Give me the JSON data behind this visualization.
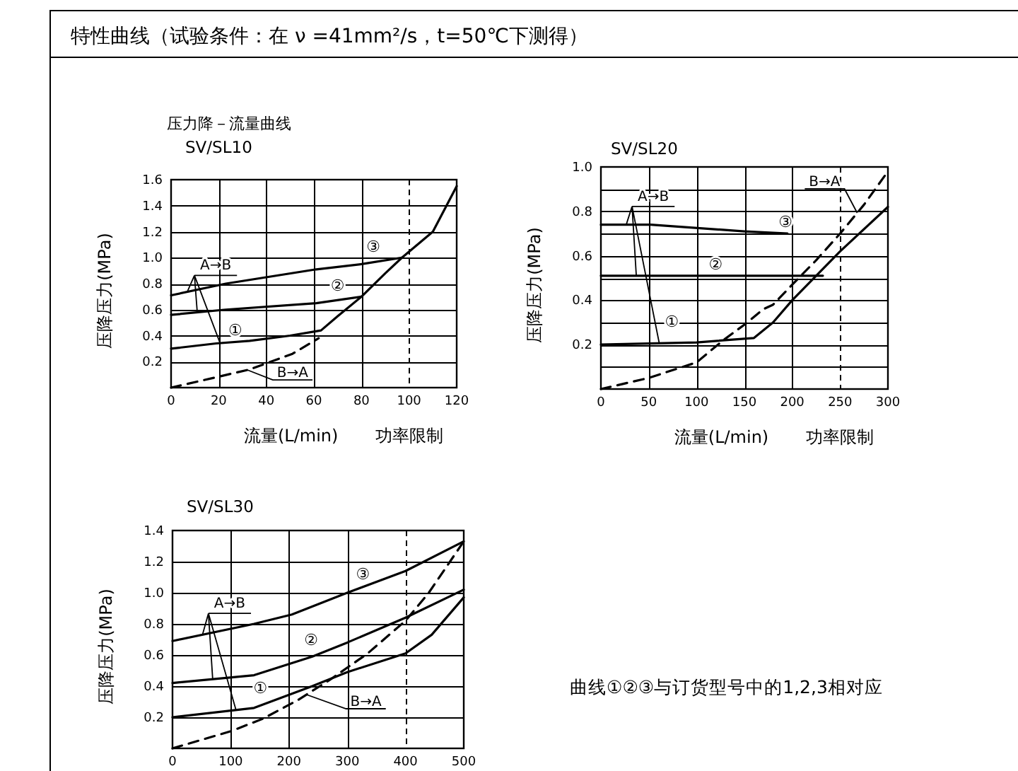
{
  "chart_data": [
    {
      "type": "other",
      "title": "特性曲线（试验条件：在 ν =41mm²/s，t=50℃下测得）"
    },
    {
      "type": "line",
      "title": "压力降－流量曲线",
      "subtitle": "SV/SL10",
      "xlabel": "流量(L/min)",
      "ylabel": "压降压力(MPa)",
      "xlim": [
        0,
        120
      ],
      "ylim": [
        0,
        1.6
      ],
      "xticks": [
        0,
        20,
        40,
        60,
        80,
        100,
        120
      ],
      "yticks": [
        {
          "value": 0,
          "label": null
        },
        0.2,
        0.4,
        0.6,
        0.8,
        {
          "value": 1,
          "label": "1.0"
        },
        1.2,
        1.4,
        1.6
      ],
      "grid": true,
      "ref_lines": [
        {
          "axis": "x",
          "value": 100,
          "label": "功率限制",
          "line_style": "dashed",
          "color": "#000000"
        }
      ],
      "series": [
        {
          "name": "①",
          "color": "#000000",
          "x": [
            0,
            19,
            33,
            50,
            63,
            70,
            80,
            90,
            97,
            110,
            120
          ],
          "values": [
            0.3,
            0.34,
            0.36,
            0.4,
            0.44,
            0.55,
            0.7,
            0.88,
            1.0,
            1.2,
            1.55
          ]
        },
        {
          "name": "②",
          "color": "#000000",
          "x": [
            0,
            23,
            61,
            80
          ],
          "values": [
            0.56,
            0.6,
            0.65,
            0.7
          ]
        },
        {
          "name": "③",
          "color": "#000000",
          "x": [
            0,
            23,
            61,
            80,
            97
          ],
          "values": [
            0.71,
            0.8,
            0.91,
            0.95,
            1.0
          ]
        },
        {
          "name": "B→A",
          "color": "#000000",
          "line_style": "dashed",
          "x": [
            0,
            19,
            33,
            51,
            62
          ],
          "values": [
            0,
            0.08,
            0.14,
            0.26,
            0.38
          ]
        }
      ],
      "annotations": [
        {
          "text": "A→B",
          "x": 11,
          "y": 0.58
        }
      ]
    },
    {
      "type": "line",
      "title": "SV/SL20",
      "xlabel": "流量(L/min)",
      "ylabel": "压降压力(MPa)",
      "xlim": [
        0,
        300
      ],
      "ylim": [
        0,
        1
      ],
      "xticks": [
        0,
        50,
        100,
        150,
        200,
        250,
        300
      ],
      "yticks": [
        {
          "value": 0,
          "label": null
        },
        {
          "value": 0.1,
          "label": null
        },
        0.2,
        {
          "value": 0.3,
          "label": null
        },
        0.4,
        {
          "value": 0.5,
          "label": null
        },
        0.6,
        {
          "value": 0.7,
          "label": null
        },
        0.8,
        {
          "value": 0.9,
          "label": null
        },
        {
          "value": 1,
          "label": "1.0"
        }
      ],
      "grid": true,
      "ref_lines": [
        {
          "axis": "x",
          "value": 250,
          "label": "功率限制",
          "line_style": "dashed",
          "color": "#000000"
        }
      ],
      "series": [
        {
          "name": "①",
          "color": "#000000",
          "x": [
            0,
            100,
            160,
            180,
            200,
            225,
            250,
            300
          ],
          "values": [
            0.2,
            0.21,
            0.23,
            0.3,
            0.4,
            0.51,
            0.62,
            0.82
          ]
        },
        {
          "name": "②",
          "color": "#000000",
          "x": [
            0,
            232
          ],
          "values": [
            0.51,
            0.51
          ]
        },
        {
          "name": "③",
          "color": "#000000",
          "x": [
            0,
            52,
            150,
            195
          ],
          "values": [
            0.74,
            0.74,
            0.71,
            0.7
          ]
        },
        {
          "name": "B→A",
          "color": "#000000",
          "line_style": "dashed",
          "x": [
            0,
            50,
            100,
            128,
            150,
            170,
            180,
            200,
            225,
            250,
            275,
            300
          ],
          "values": [
            0,
            0.05,
            0.12,
            0.22,
            0.29,
            0.36,
            0.38,
            0.47,
            0.58,
            0.7,
            0.83,
            0.98
          ]
        }
      ],
      "annotations": [
        {
          "text": "A→B",
          "x": 37,
          "y": 0.51
        }
      ]
    },
    {
      "type": "line",
      "title": "SV/SL30",
      "ylabel": "压降压力(MPa)",
      "xlim": [
        0,
        500
      ],
      "ylim": [
        0,
        1.4
      ],
      "xticks": [
        0,
        100,
        200,
        300,
        400,
        500
      ],
      "yticks": [
        {
          "value": 0,
          "label": null
        },
        0.2,
        0.4,
        0.6,
        0.8,
        {
          "value": 1,
          "label": "1.0"
        },
        1.2,
        1.4
      ],
      "grid": true,
      "ref_lines": [
        {
          "axis": "x",
          "value": 400,
          "line_style": "dashed",
          "color": "#000000"
        }
      ],
      "series": [
        {
          "name": "①",
          "color": "#000000",
          "x": [
            0,
            140,
            240,
            300,
            400,
            445,
            500
          ],
          "values": [
            0.2,
            0.26,
            0.4,
            0.49,
            0.61,
            0.73,
            0.97
          ]
        },
        {
          "name": "②",
          "color": "#000000",
          "x": [
            0,
            140,
            240,
            300,
            400,
            500
          ],
          "values": [
            0.42,
            0.47,
            0.59,
            0.68,
            0.84,
            1.02
          ]
        },
        {
          "name": "③",
          "color": "#000000",
          "x": [
            0,
            140,
            205,
            300,
            400,
            500
          ],
          "values": [
            0.69,
            0.8,
            0.86,
            1.0,
            1.14,
            1.33
          ]
        },
        {
          "name": "B→A",
          "color": "#000000",
          "line_style": "dashed",
          "x": [
            0,
            100,
            155,
            215,
            270,
            335,
            400,
            440,
            500
          ],
          "values": [
            0,
            0.11,
            0.19,
            0.31,
            0.44,
            0.61,
            0.82,
            1.0,
            1.33
          ]
        }
      ],
      "annotations": [
        {
          "text": "A→B",
          "x": 69,
          "y": 0.44
        }
      ]
    },
    {
      "type": "other",
      "annotations": [
        "曲线①②③与订货型号中的1,2,3相对应"
      ]
    }
  ]
}
